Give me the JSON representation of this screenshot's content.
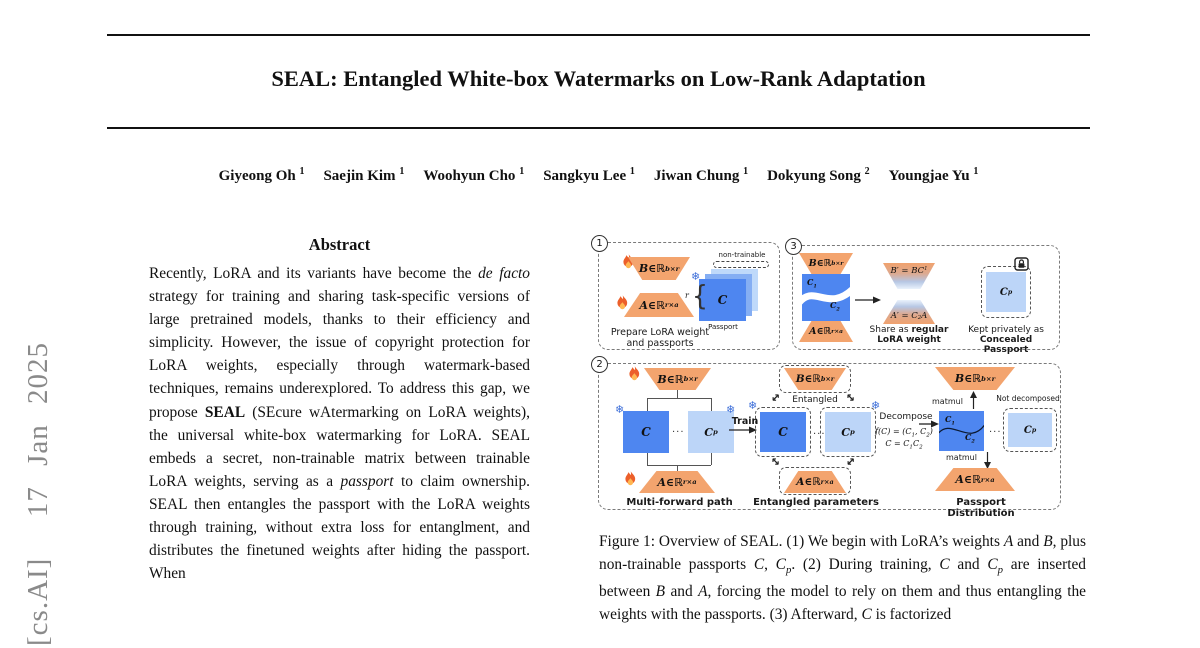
{
  "stamp": {
    "text": "[cs.AI]  17 Jan 2025"
  },
  "header": {
    "title": "SEAL: Entangled White-box Watermarks on Low-Rank Adaptation"
  },
  "authors": [
    {
      "name": "Giyeong Oh",
      "sup": "1"
    },
    {
      "name": "Saejin Kim",
      "sup": "1"
    },
    {
      "name": "Woohyun Cho",
      "sup": "1"
    },
    {
      "name": "Sangkyu Lee",
      "sup": "1"
    },
    {
      "name": "Jiwan Chung",
      "sup": "1"
    },
    {
      "name": "Dokyung Song",
      "sup": "2"
    },
    {
      "name": "Youngjae Yu",
      "sup": "1"
    }
  ],
  "abstract": {
    "heading": "Abstract",
    "body": [
      {
        "t": "Recently, LoRA and its variants have become the "
      },
      {
        "t": "de facto",
        "s": "i"
      },
      {
        "t": " strategy for training and sharing task-specific versions of large pretrained models, thanks to their efficiency and simplicity. However, the issue of copyright protection for LoRA weights, especially through watermark-based techniques, remains underexplored. To address this gap, we propose "
      },
      {
        "t": "SEAL",
        "s": "b"
      },
      {
        "t": " (SEcure wAtermarking on LoRA weights), the universal white-box watermarking for LoRA. SEAL embeds a secret, non-trainable matrix between trainable LoRA weights, serving as a "
      },
      {
        "t": "passport",
        "s": "i"
      },
      {
        "t": " to claim ownership. SEAL then entangles the passport with the LoRA weights through training, without extra loss for entanglment, and distributes the finetuned weights after hiding the passport. When"
      }
    ]
  },
  "figure": {
    "colors": {
      "orange": "#F3A46E",
      "blue": "#4E86F0",
      "light_blue": "#BCD5F8",
      "snow_blue": "#3E6FD9"
    },
    "icons": {
      "snowflake": "❄",
      "dots": "...",
      "double_arrow": "↔",
      "brace": "{",
      "fire": "flame-icon",
      "lock": "lock-icon"
    },
    "labels": {
      "B": {
        "var": "B",
        "set": "∈ℝ",
        "sup": "b×r"
      },
      "A": {
        "var": "A",
        "set": "∈ℝ",
        "sup": "r×a"
      },
      "C": {
        "var": "C"
      },
      "Cp": {
        "var": "C",
        "sub": "p"
      },
      "C1": {
        "var": "C",
        "sub": "1"
      },
      "C2": {
        "var": "C",
        "sub": "2"
      },
      "Bp": {
        "var": "B′ = BC",
        "sub": "1"
      },
      "Ap": {
        "var": "A′ = C",
        "sub": "2",
        "after": "A"
      }
    },
    "panel1": {
      "num": "1",
      "non_trainable": "non-trainable",
      "rank": "r",
      "passport": "Passport",
      "caption": "Prepare LoRA weight and passports"
    },
    "panel3": {
      "num": "3",
      "share_caption": [
        {
          "t": "Share as "
        },
        {
          "t": "regular LoRA weight",
          "s": "b"
        }
      ],
      "kept_caption": [
        {
          "t": "Kept privately as "
        },
        {
          "t": "Concealed Passport",
          "s": "b"
        }
      ]
    },
    "panel2": {
      "num": "2",
      "train": "Train",
      "entangled": "Entangled",
      "decompose": "Decompose",
      "f1": [
        {
          "t": "f(C) = (C"
        },
        {
          "t": "1",
          "s": "sub"
        },
        {
          "t": ", C"
        },
        {
          "t": "2",
          "s": "sub"
        },
        {
          "t": ")"
        }
      ],
      "f2": [
        {
          "t": "C = C"
        },
        {
          "t": "1",
          "s": "sub"
        },
        {
          "t": "C"
        },
        {
          "t": "2",
          "s": "sub"
        }
      ],
      "matmul_up": "matmul",
      "matmul_down": "matmul",
      "not_decomposed": "Not decomposed",
      "caption_a": "Multi-forward path",
      "caption_b": "Entangled parameters",
      "caption_c": "Passport Distribution"
    }
  },
  "caption": [
    {
      "t": "Figure 1: Overview of SEAL. (1) We begin with LoRA’s weights "
    },
    {
      "t": "A",
      "s": "i"
    },
    {
      "t": " and "
    },
    {
      "t": "B",
      "s": "i"
    },
    {
      "t": ", plus non-trainable passports "
    },
    {
      "t": "C",
      "s": "i"
    },
    {
      "t": ", "
    },
    {
      "t": "C",
      "s": "i"
    },
    {
      "t": "p",
      "s": "sub i"
    },
    {
      "t": ". (2) During training, "
    },
    {
      "t": "C",
      "s": "i"
    },
    {
      "t": " and "
    },
    {
      "t": "C",
      "s": "i"
    },
    {
      "t": "p",
      "s": "sub i"
    },
    {
      "t": " are inserted between "
    },
    {
      "t": "B",
      "s": "i"
    },
    {
      "t": " and "
    },
    {
      "t": "A",
      "s": "i"
    },
    {
      "t": ", forcing the model to rely on them and thus entangling the weights with the passports. (3) Afterward, "
    },
    {
      "t": "C",
      "s": "i"
    },
    {
      "t": " is factorized"
    }
  ]
}
